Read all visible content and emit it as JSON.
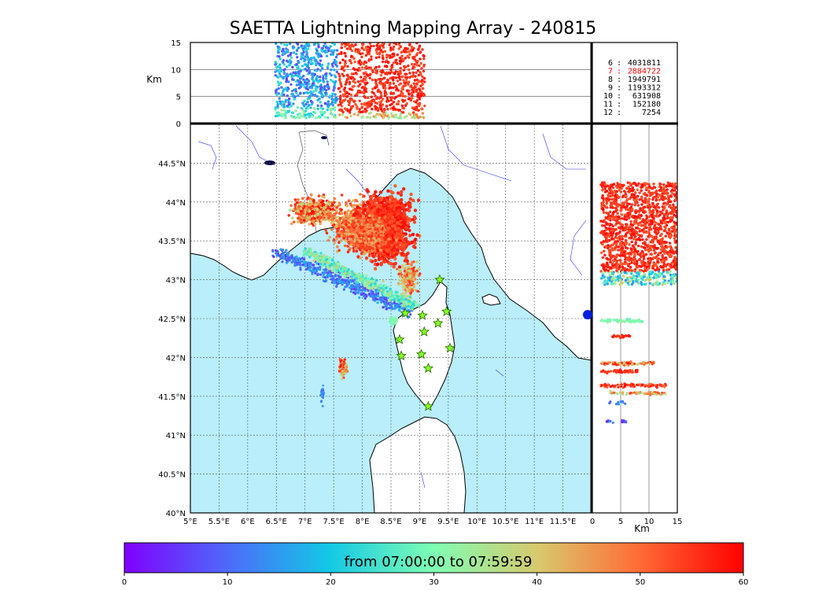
{
  "title": "SAETTA Lightning Mapping Array - 240815",
  "colors": {
    "sea": "#b9eefa",
    "land": "#ffffff",
    "coast": "#000000",
    "rivers": "#3333ff",
    "borders": "#555555",
    "grid": "#555555",
    "highlight": "#ff0000",
    "station_fill": "#88ff22",
    "station_stroke": "#226600"
  },
  "chart_data": {
    "type": "scatter",
    "map": {
      "lon_range": [
        5,
        12
      ],
      "lat_range": [
        40,
        45
      ],
      "lon_ticks": [
        "5°E",
        "5.5°E",
        "6°E",
        "6.5°E",
        "7°E",
        "7.5°E",
        "8°E",
        "8.5°E",
        "9°E",
        "9.5°E",
        "10°E",
        "10.5°E",
        "11°E",
        "11.5°E"
      ],
      "lat_ticks": [
        "40°N",
        "40.5°N",
        "41°N",
        "41.5°N",
        "42°N",
        "42.5°N",
        "43°N",
        "43.5°N",
        "44°N",
        "44.5°N"
      ],
      "grid": true
    },
    "height_panel_top": {
      "ylabel": "Km",
      "yticks": [
        "0",
        "5",
        "10",
        "15"
      ],
      "ylim": [
        0,
        15
      ]
    },
    "height_panel_right": {
      "xlabel": "Km",
      "xticks": [
        "0",
        "5",
        "10",
        "15"
      ],
      "xlim": [
        0,
        15
      ]
    },
    "stats": [
      {
        "label": "6",
        "value": "4031811",
        "highlight": false
      },
      {
        "label": "7",
        "value": "2884722",
        "highlight": true
      },
      {
        "label": "8",
        "value": "1949791",
        "highlight": false
      },
      {
        "label": "9",
        "value": "1193312",
        "highlight": false
      },
      {
        "label": "10",
        "value": "631908",
        "highlight": false
      },
      {
        "label": "11",
        "value": "152180",
        "highlight": false
      },
      {
        "label": "12",
        "value": "7254",
        "highlight": false
      }
    ],
    "stations": [
      {
        "lon": 9.35,
        "lat": 43.0
      },
      {
        "lon": 8.75,
        "lat": 42.57
      },
      {
        "lon": 9.05,
        "lat": 42.54
      },
      {
        "lon": 9.47,
        "lat": 42.59
      },
      {
        "lon": 9.32,
        "lat": 42.44
      },
      {
        "lon": 8.65,
        "lat": 42.23
      },
      {
        "lon": 9.08,
        "lat": 42.33
      },
      {
        "lon": 9.53,
        "lat": 42.12
      },
      {
        "lon": 8.68,
        "lat": 42.02
      },
      {
        "lon": 9.03,
        "lat": 42.04
      },
      {
        "lon": 9.15,
        "lat": 41.86
      },
      {
        "lon": 9.15,
        "lat": 41.37
      }
    ],
    "colorbar": {
      "label": "from 07:00:00 to 07:59:59",
      "range": [
        0,
        60
      ],
      "ticks": [
        "0",
        "10",
        "20",
        "30",
        "40",
        "50",
        "60"
      ],
      "colormap": "rainbow"
    }
  }
}
